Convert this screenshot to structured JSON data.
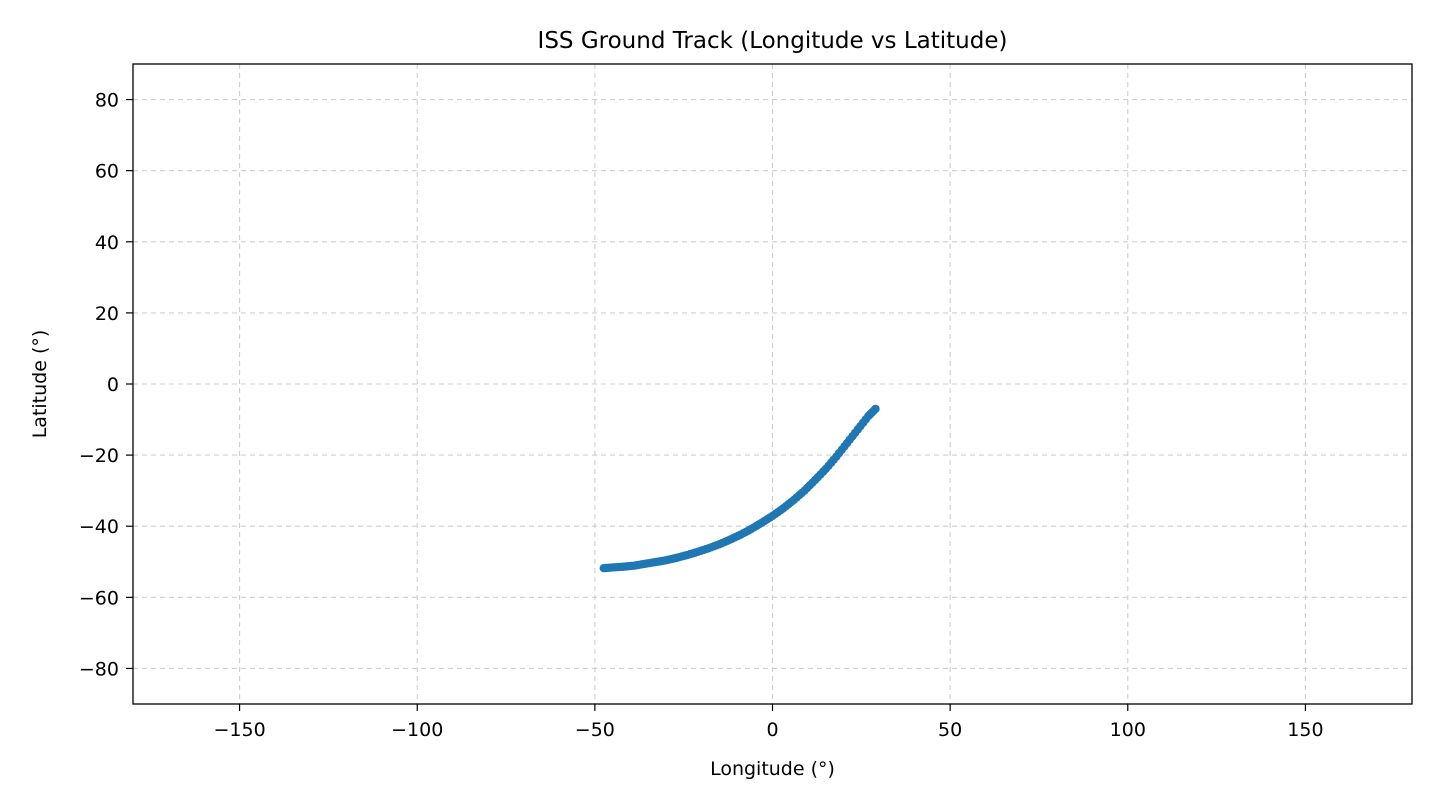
{
  "chart_data": {
    "type": "scatter",
    "title": "ISS Ground Track (Longitude vs Latitude)",
    "xlabel": "Longitude (°)",
    "ylabel": "Latitude (°)",
    "xlim": [
      -180,
      180
    ],
    "ylim": [
      -90,
      90
    ],
    "xticks": [
      -150,
      -100,
      -50,
      0,
      50,
      100,
      150
    ],
    "yticks": [
      -80,
      -60,
      -40,
      -20,
      0,
      20,
      40,
      60,
      80
    ],
    "xtick_labels": [
      "−150",
      "−100",
      "−50",
      "0",
      "50",
      "100",
      "150"
    ],
    "ytick_labels": [
      "−80",
      "−60",
      "−40",
      "−20",
      "0",
      "20",
      "40",
      "60",
      "80"
    ],
    "grid": true,
    "series": [
      {
        "color": "#1f77b4",
        "x": [
          -47.5,
          -45,
          -42,
          -39,
          -36,
          -33,
          -30,
          -27,
          -24,
          -21,
          -18,
          -15,
          -12,
          -9,
          -6,
          -3,
          0,
          3,
          6,
          9,
          12,
          15,
          18,
          21,
          24,
          27,
          29
        ],
        "y": [
          -51.8,
          -51.6,
          -51.4,
          -51.1,
          -50.6,
          -50.1,
          -49.6,
          -48.9,
          -48.1,
          -47.2,
          -46.2,
          -45.1,
          -43.8,
          -42.4,
          -40.8,
          -39.0,
          -37.1,
          -35.0,
          -32.6,
          -30.0,
          -27.0,
          -23.9,
          -20.4,
          -16.6,
          -12.8,
          -9.0,
          -7.0
        ]
      }
    ]
  }
}
